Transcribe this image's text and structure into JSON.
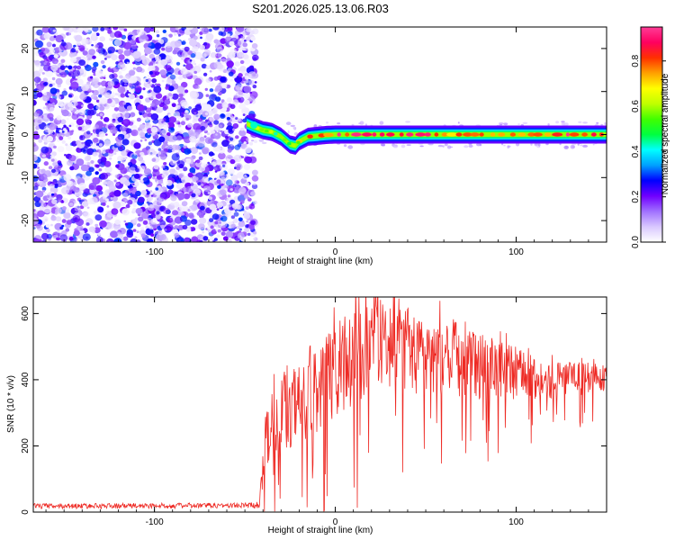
{
  "figure_title": "S201.2026.025.13.06.R03",
  "chart_data": [
    {
      "type": "heatmap",
      "name": "spectrogram",
      "xlabel": "Height of straight line (km)",
      "ylabel": "Frequency (Hz)",
      "xlim": [
        -167,
        150
      ],
      "ylim": [
        -25,
        25
      ],
      "xticks": [
        -100,
        0,
        100
      ],
      "yticks": [
        -20,
        -10,
        0,
        10,
        20
      ],
      "noise_region_x": [
        -167,
        -47
      ],
      "signal_trace": {
        "x": [
          -49,
          -45,
          -40,
          -35,
          -30,
          -25,
          -22,
          -20,
          -15,
          -10,
          -5,
          0,
          20,
          50,
          100,
          150
        ],
        "y": [
          2.5,
          1.8,
          1.0,
          0.6,
          -0.5,
          -2.3,
          -2.6,
          -1.6,
          -0.5,
          -0.3,
          -0.1,
          0,
          0,
          0,
          0,
          0
        ]
      },
      "colorbar": {
        "label": "Normalized spectral amplitude",
        "range": [
          0,
          0.95
        ],
        "ticks": [
          0.0,
          0.2,
          0.4,
          0.6,
          0.8
        ],
        "tick_labels": [
          "0.0",
          "0.2",
          "0.4",
          "0.6",
          "0.8"
        ],
        "colors": [
          "#ffffff",
          "#d9c8ff",
          "#a070ff",
          "#7000ff",
          "#0000ff",
          "#00a0ff",
          "#00ffff",
          "#00ff40",
          "#40ff00",
          "#c0ff00",
          "#ffff00",
          "#ffa000",
          "#ff3000",
          "#ff0060",
          "#ff3c96"
        ]
      }
    },
    {
      "type": "line",
      "name": "snr",
      "xlabel": "Height of straight line (km)",
      "ylabel": "SNR (10 * v/v)",
      "xlim": [
        -167,
        150
      ],
      "ylim": [
        0,
        650
      ],
      "xticks": [
        -100,
        0,
        100
      ],
      "yticks": [
        0,
        200,
        400,
        600
      ],
      "color": "#ee2a24",
      "series_profile": {
        "x": [
          -167,
          -50,
          -42,
          -40,
          -35,
          -25,
          -15,
          0,
          10,
          25,
          40,
          60,
          80,
          100,
          120,
          150
        ],
        "y_center": [
          18,
          20,
          22,
          160,
          280,
          300,
          350,
          430,
          480,
          520,
          500,
          470,
          440,
          420,
          400,
          405
        ],
        "y_spread": [
          8,
          8,
          10,
          90,
          110,
          120,
          130,
          150,
          160,
          150,
          140,
          120,
          100,
          80,
          60,
          40
        ]
      }
    }
  ]
}
